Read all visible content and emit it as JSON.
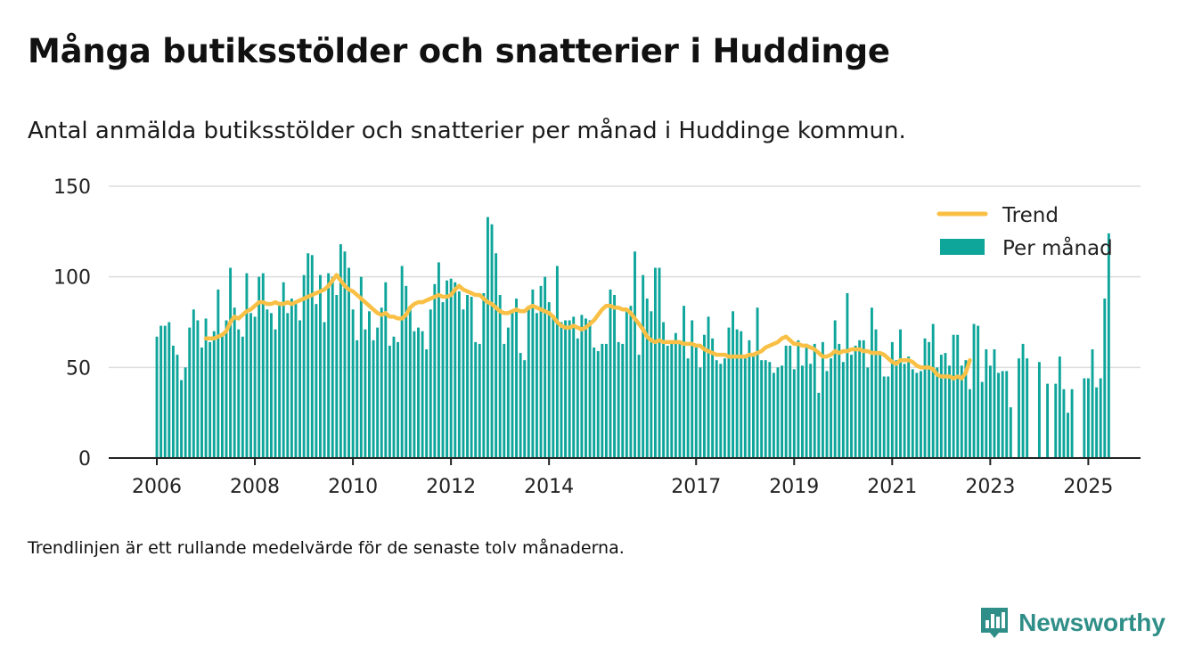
{
  "title": "Många butiksstölder och snatterier i Huddinge",
  "subtitle": "Antal anmälda butiksstölder och snatterier per månad i Huddinge kommun.",
  "footnote": "Trendlinjen är ett rullande medelvärde för de senaste tolv månaderna.",
  "brand": {
    "name": "Newsworthy",
    "icon": "newsworthy-logo-icon"
  },
  "colors": {
    "bars": "#0ea59b",
    "trend": "#f9c045",
    "grid": "#dddddd",
    "axis": "#222222"
  },
  "chart_data": {
    "type": "bar",
    "yticks": [
      "0",
      "50",
      "100",
      "150"
    ],
    "ylim": [
      0,
      150
    ],
    "xticks": [
      "2006",
      "2008",
      "2010",
      "2012",
      "2014",
      "2017",
      "2019",
      "2021",
      "2023",
      "2025"
    ],
    "legend": {
      "position": "top-right",
      "trend_label": "Trend",
      "bars_label": "Per månad"
    },
    "x_start": "2006-01",
    "series": [
      {
        "name": "Per månad",
        "type": "bar",
        "values": [
          67,
          73,
          73,
          75,
          62,
          57,
          43,
          50,
          72,
          82,
          76,
          61,
          77,
          64,
          70,
          93,
          68,
          76,
          105,
          83,
          71,
          67,
          102,
          80,
          78,
          100,
          102,
          82,
          80,
          71,
          85,
          97,
          80,
          88,
          85,
          76,
          101,
          113,
          112,
          85,
          101,
          75,
          102,
          100,
          90,
          118,
          114,
          105,
          82,
          65,
          100,
          71,
          81,
          65,
          72,
          83,
          97,
          62,
          67,
          64,
          106,
          95,
          83,
          70,
          72,
          70,
          60,
          82,
          96,
          108,
          86,
          98,
          99,
          97,
          92,
          82,
          90,
          89,
          64,
          63,
          91,
          133,
          129,
          113,
          90,
          63,
          72,
          81,
          88,
          58,
          54,
          84,
          93,
          80,
          95,
          100,
          86,
          79,
          106,
          75,
          76,
          76,
          78,
          66,
          79,
          77,
          76,
          61,
          59,
          63,
          63,
          93,
          90,
          64,
          63,
          81,
          84,
          114,
          57,
          101,
          88,
          81,
          105,
          105,
          75,
          62,
          64,
          69,
          64,
          84,
          55,
          76,
          62,
          50,
          68,
          78,
          66,
          54,
          52,
          55,
          72,
          81,
          71,
          70,
          56,
          65,
          56,
          83,
          54,
          54,
          53,
          47,
          50,
          51,
          62,
          62,
          49,
          65,
          51,
          63,
          52,
          63,
          36,
          64,
          48,
          55,
          76,
          63,
          53,
          91,
          57,
          62,
          65,
          65,
          50,
          83,
          71,
          58,
          45,
          45,
          64,
          54,
          71,
          52,
          56,
          49,
          47,
          48,
          66,
          64,
          74,
          50,
          57,
          58,
          51,
          68,
          68,
          51,
          54,
          38,
          74,
          73,
          42,
          60,
          51,
          60,
          47,
          48,
          48,
          28,
          0,
          55,
          63,
          55,
          0,
          0,
          53,
          0,
          41,
          0,
          41,
          56,
          38,
          25,
          38,
          0,
          0,
          44,
          44,
          60,
          39,
          44,
          88,
          124
        ]
      },
      {
        "name": "Trend",
        "type": "line",
        "start_index": 12,
        "values": [
          66,
          66,
          66,
          67,
          68,
          70,
          75,
          78,
          77,
          79,
          81,
          82,
          84,
          86,
          86,
          85,
          85,
          86,
          85,
          85,
          86,
          85,
          86,
          87,
          88,
          89,
          90,
          91,
          92,
          93,
          95,
          98,
          101,
          98,
          95,
          93,
          92,
          90,
          88,
          86,
          84,
          82,
          80,
          79,
          80,
          78,
          78,
          77,
          77,
          79,
          83,
          85,
          86,
          86,
          87,
          88,
          89,
          90,
          89,
          89,
          90,
          93,
          95,
          93,
          92,
          91,
          90,
          90,
          88,
          86,
          85,
          83,
          81,
          80,
          80,
          81,
          82,
          81,
          81,
          83,
          84,
          83,
          82,
          81,
          80,
          78,
          75,
          73,
          72,
          72,
          73,
          72,
          71,
          72,
          74,
          76,
          79,
          82,
          84,
          84,
          83,
          83,
          82,
          82,
          80,
          77,
          74,
          71,
          67,
          65,
          64,
          65,
          64,
          64,
          64,
          64,
          64,
          63,
          63,
          63,
          62,
          62,
          60,
          59,
          58,
          57,
          57,
          57,
          56,
          56,
          56,
          56,
          56,
          57,
          57,
          58,
          59,
          61,
          62,
          63,
          64,
          66,
          67,
          65,
          63,
          63,
          62,
          62,
          61,
          60,
          58,
          56,
          56,
          57,
          59,
          58,
          59,
          59,
          60,
          60,
          60,
          59,
          59,
          58,
          58,
          58,
          57,
          55,
          53,
          52,
          54,
          54,
          54,
          53,
          51,
          50,
          50,
          50,
          49,
          46,
          45,
          45,
          45,
          44,
          45,
          44,
          47,
          54
        ]
      }
    ]
  }
}
